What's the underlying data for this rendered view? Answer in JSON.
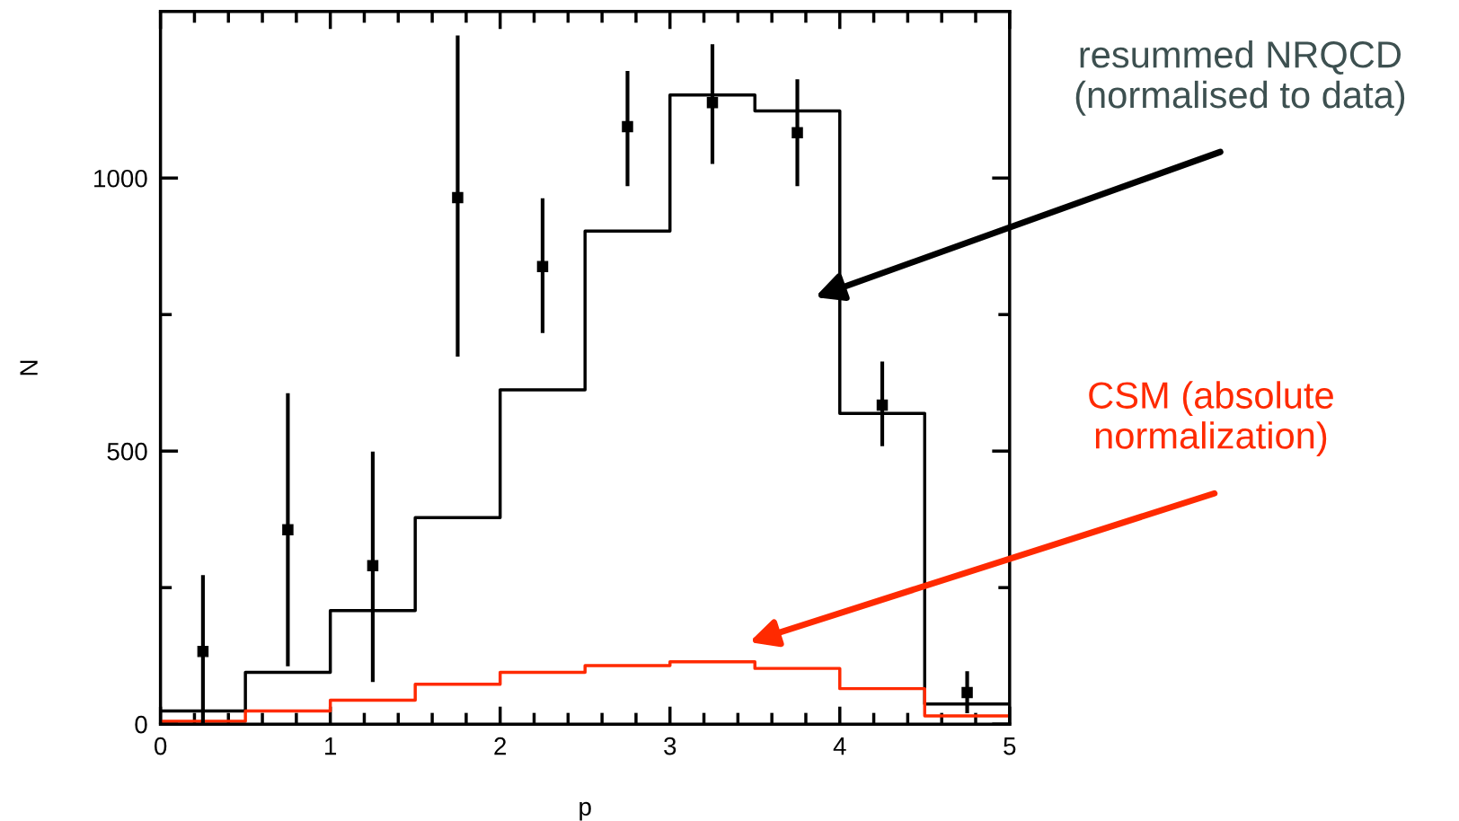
{
  "chart_data": {
    "type": "step",
    "xlabel": "p",
    "ylabel": "N",
    "x": [
      0,
      0.5,
      1,
      1.5,
      2,
      2.5,
      3,
      3.5,
      4,
      4.5,
      5
    ],
    "series": [
      {
        "color": "#000000",
        "values": [
          24,
          95,
          208,
          378,
          612,
          903,
          1152,
          1123,
          569,
          37,
          37
        ]
      },
      {
        "color": "#ff2a00",
        "values": [
          5,
          24,
          44,
          73,
          95,
          107,
          114,
          102,
          65,
          15,
          15
        ]
      },
      {
        "type": "scatter",
        "color": "#000000",
        "marker": "square",
        "x": [
          0.25,
          0.75,
          1.25,
          1.75,
          2.25,
          2.75,
          3.25,
          3.75,
          4.25,
          4.75
        ],
        "values": [
          133,
          356,
          290,
          964,
          838,
          1094,
          1138,
          1083,
          584,
          58
        ],
        "errors": [
          [
            0,
            273
          ],
          [
            106,
            606
          ],
          [
            77,
            499
          ],
          [
            673,
            1261
          ],
          [
            716,
            963
          ],
          [
            985,
            1196
          ],
          [
            1026,
            1245
          ],
          [
            985,
            1181
          ],
          [
            509,
            664
          ],
          [
            20,
            97
          ]
        ]
      }
    ],
    "xlim": [
      0,
      5
    ],
    "ylim": [
      0,
      1305
    ],
    "xticks": [
      0,
      {
        "value": 0.2,
        "label": null
      },
      {
        "value": 0.4,
        "label": null
      },
      {
        "value": 0.6,
        "label": null
      },
      {
        "value": 0.8,
        "label": null
      },
      1,
      {
        "value": 1.2,
        "label": null
      },
      {
        "value": 1.4,
        "label": null
      },
      {
        "value": 1.6,
        "label": null
      },
      {
        "value": 1.8,
        "label": null
      },
      2,
      {
        "value": 2.2,
        "label": null
      },
      {
        "value": 2.4,
        "label": null
      },
      {
        "value": 2.6,
        "label": null
      },
      {
        "value": 2.8,
        "label": null
      },
      3,
      {
        "value": 3.2,
        "label": null
      },
      {
        "value": 3.4,
        "label": null
      },
      {
        "value": 3.6,
        "label": null
      },
      {
        "value": 3.8,
        "label": null
      },
      4,
      {
        "value": 4.2,
        "label": null
      },
      {
        "value": 4.4,
        "label": null
      },
      {
        "value": 4.6,
        "label": null
      },
      {
        "value": 4.8,
        "label": null
      },
      5
    ],
    "yticks": [
      0,
      {
        "value": 250,
        "label": null
      },
      500,
      {
        "value": 750,
        "label": null
      },
      1000
    ],
    "grid": false,
    "annotations": [
      "resummed NRQCD\n(normalised to data)",
      "CSM (absolute\nnormalization)"
    ]
  }
}
